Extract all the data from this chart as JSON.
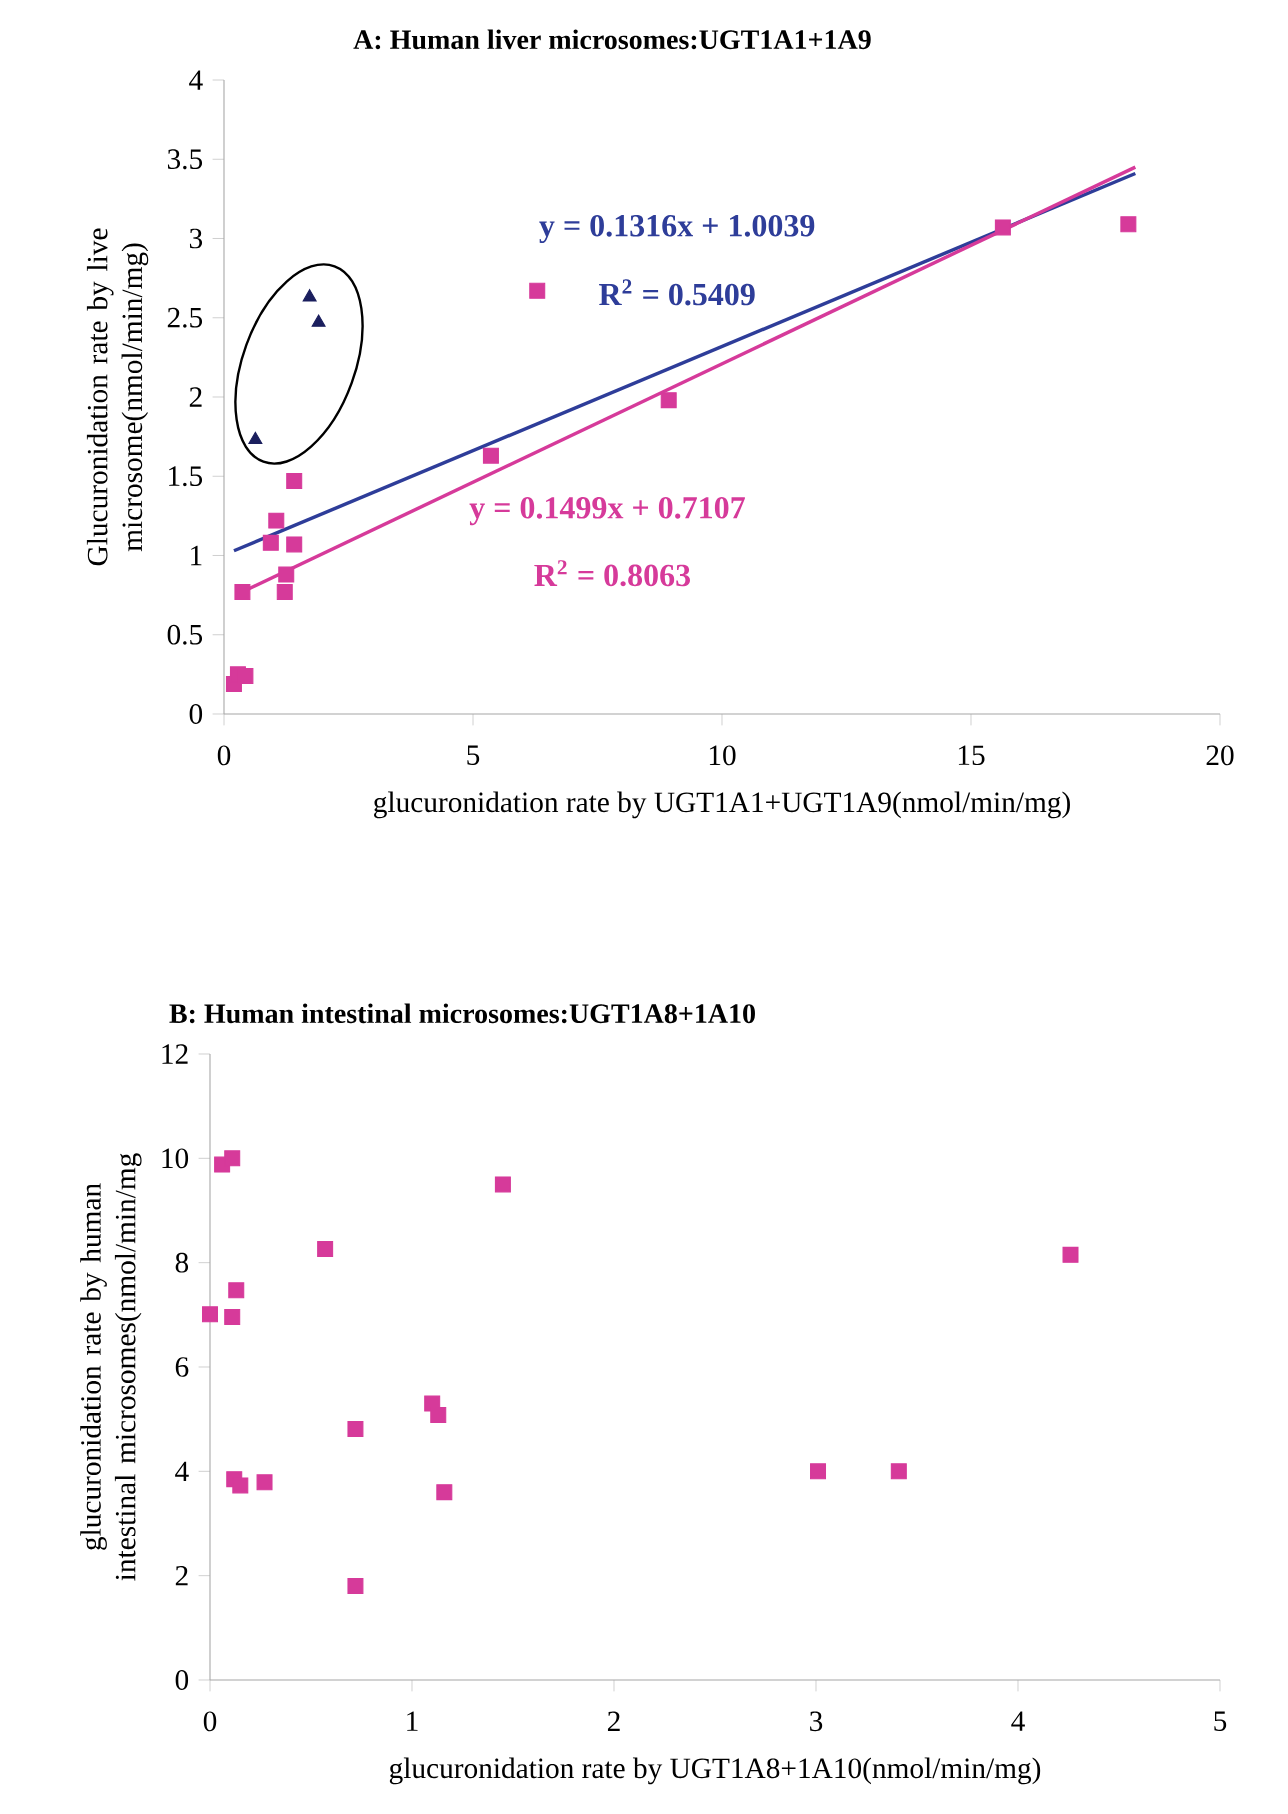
{
  "chart_data": [
    {
      "type": "scatter",
      "title": "**A:  Human liver microsomes:UGT1A1+1A9**",
      "xlabel": "glucuronidation rate by UGT1A1+UGT1A9(nmol/min/mg)",
      "ylabel": "Glucuronidation rate by live microsome(nmol/min/mg)",
      "xlim": [
        0,
        20
      ],
      "ylim": [
        0,
        4
      ],
      "xticks": [
        0,
        5,
        10,
        15,
        20
      ],
      "yticks": [
        0,
        0.5,
        1,
        1.5,
        2,
        2.5,
        3,
        3.5,
        4
      ],
      "series": [
        {
          "type": "scatter",
          "marker": "square",
          "color": "#d63a9a",
          "x": [
            0.2,
            0.28,
            0.43,
            0.37,
            1.05,
            0.94,
            1.41,
            1.41,
            1.25,
            1.22,
            5.36,
            8.93,
            15.64,
            18.16,
            6.29
          ],
          "values": [
            0.19,
            0.25,
            0.24,
            0.77,
            1.22,
            1.08,
            1.47,
            1.07,
            0.88,
            0.77,
            1.63,
            1.98,
            3.07,
            3.09,
            2.67
          ]
        },
        {
          "type": "scatter",
          "marker": "triangle",
          "color": "#1b1f5e",
          "x": [
            0.63,
            1.72,
            1.9
          ],
          "values": [
            1.73,
            2.63,
            2.47
          ]
        },
        {
          "type": "line",
          "color": "#2e3d99",
          "x": [
            0.2,
            18.3
          ],
          "values": [
            1.03,
            3.41
          ]
        },
        {
          "type": "line",
          "color": "#d63a9a",
          "x": [
            0.3,
            18.3
          ],
          "values": [
            0.76,
            3.45
          ]
        }
      ],
      "annotations": [
        "**y = 0.1316x + 1.0039**",
        "**R$^{2}$ = 0.5409**",
        "**y = 0.1499x + 0.7107**",
        "**R$^{2}$ = 0.8063**"
      ]
    },
    {
      "type": "scatter",
      "title": "**B:  Human intestinal microsomes:UGT1A8+1A10**",
      "xlabel": "glucuronidation rate by UGT1A8+1A10(nmol/min/mg)",
      "ylabel": "glucuronidation rate by human intestinal microsomes(nmol/min/mg",
      "xlim": [
        0,
        5
      ],
      "ylim": [
        0,
        12
      ],
      "xticks": [
        0,
        1,
        2,
        3,
        4,
        5
      ],
      "yticks": [
        0,
        2,
        4,
        6,
        8,
        10,
        12
      ],
      "marker": "square",
      "series": [
        {
          "color": "#d63a9a",
          "x": [
            0.0,
            0.06,
            0.11,
            0.13,
            0.11,
            0.57,
            1.45,
            4.26,
            0.72,
            1.1,
            1.13,
            0.12,
            0.15,
            0.27,
            1.16,
            3.01,
            3.41,
            0.72
          ],
          "values": [
            7.01,
            9.88,
            10.0,
            7.47,
            6.96,
            8.26,
            9.5,
            8.15,
            4.81,
            5.3,
            5.08,
            3.85,
            3.73,
            3.79,
            3.6,
            4.0,
            4.0,
            1.8
          ]
        }
      ]
    }
  ]
}
